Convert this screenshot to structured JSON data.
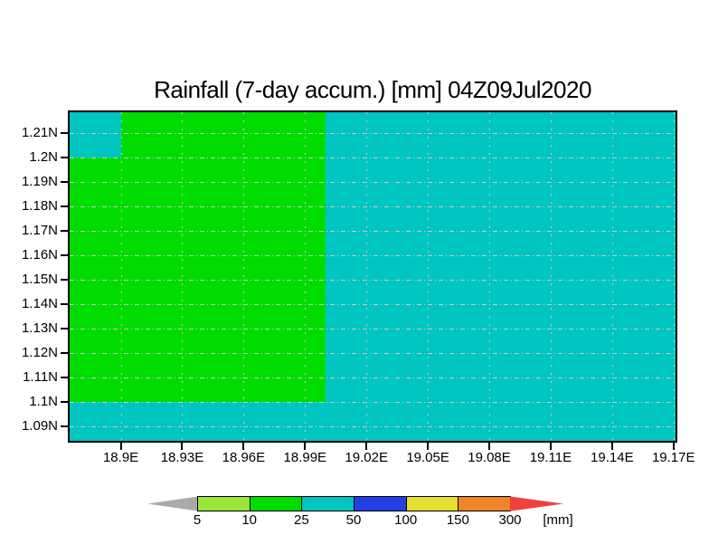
{
  "chart_data": {
    "type": "heatmap",
    "title": "Rainfall (7-day accum.) [mm] 04Z09Jul2020",
    "x_axis": {
      "range": [
        18.875,
        19.171
      ],
      "ticks": [
        {
          "value": 18.9,
          "label": "18.9E"
        },
        {
          "value": 18.93,
          "label": "18.93E"
        },
        {
          "value": 18.96,
          "label": "18.96E"
        },
        {
          "value": 18.99,
          "label": "18.99E"
        },
        {
          "value": 19.02,
          "label": "19.02E"
        },
        {
          "value": 19.05,
          "label": "19.05E"
        },
        {
          "value": 19.08,
          "label": "19.08E"
        },
        {
          "value": 19.11,
          "label": "19.11E"
        },
        {
          "value": 19.14,
          "label": "19.14E"
        },
        {
          "value": 19.17,
          "label": "19.17E"
        }
      ]
    },
    "y_axis": {
      "range": [
        1.084,
        1.2185
      ],
      "ticks": [
        {
          "value": 1.21,
          "label": "1.21N"
        },
        {
          "value": 1.2,
          "label": "1.2N"
        },
        {
          "value": 1.19,
          "label": "1.19N"
        },
        {
          "value": 1.18,
          "label": "1.18N"
        },
        {
          "value": 1.17,
          "label": "1.17N"
        },
        {
          "value": 1.16,
          "label": "1.16N"
        },
        {
          "value": 1.15,
          "label": "1.15N"
        },
        {
          "value": 1.14,
          "label": "1.14N"
        },
        {
          "value": 1.13,
          "label": "1.13N"
        },
        {
          "value": 1.12,
          "label": "1.12N"
        },
        {
          "value": 1.11,
          "label": "1.11N"
        },
        {
          "value": 1.1,
          "label": "1.1N"
        },
        {
          "value": 1.09,
          "label": "1.09N"
        }
      ]
    },
    "grid": {
      "show": true,
      "color": "#c8c8c8"
    },
    "palette": {
      "cyan_25_50mm": "#00c6c2",
      "green_10_25mm": "#00dc00"
    },
    "regions": [
      {
        "name": "region-background-25-50mm",
        "rain_mm": "25-50",
        "color": "cyan_25_50mm",
        "lon": [
          18.875,
          19.171
        ],
        "lat": [
          1.084,
          1.2185
        ]
      },
      {
        "name": "region-green-10-25mm",
        "rain_mm": "10-25",
        "color": "green_10_25mm",
        "lon": [
          18.875,
          19.0
        ],
        "lat": [
          1.1,
          1.2185
        ]
      },
      {
        "name": "region-corner-25-50mm",
        "rain_mm": "25-50",
        "color": "cyan_25_50mm",
        "lon": [
          18.875,
          18.9
        ],
        "lat": [
          1.2,
          1.2185
        ]
      }
    ],
    "colorbar": {
      "tick_labels": [
        "5",
        "10",
        "25",
        "50",
        "100",
        "150",
        "300"
      ],
      "segment_colors": [
        "#9ae43c",
        "#00dc00",
        "#00c6c2",
        "#2340e6",
        "#e6de30",
        "#ee8528"
      ],
      "below_min_color": "#aaaaaa",
      "above_max_color": "#f04040",
      "unit_label": "[mm]"
    }
  }
}
